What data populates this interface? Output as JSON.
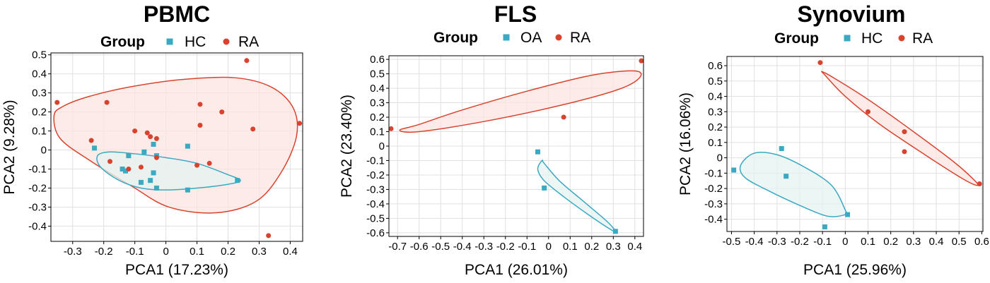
{
  "colors": {
    "group_a": "#3aa9c1",
    "group_b": "#d9432e",
    "grid": "#e0e0e0"
  },
  "chart_data": [
    {
      "type": "scatter",
      "title": "PBMC",
      "xlabel": "PCA1 (17.23%)",
      "ylabel": "PCA2 (9.28%)",
      "xlim": [
        -0.37,
        0.44
      ],
      "ylim": [
        -0.48,
        0.51
      ],
      "xticks": [
        -0.3,
        -0.2,
        -0.1,
        0,
        0.1,
        0.2,
        0.3,
        0.4
      ],
      "xtick_labels": [
        "-0.3",
        "-0.2",
        "-0.1",
        "0",
        "0.1",
        "0.2",
        "0.3",
        "0.4"
      ],
      "yticks": [
        0.5,
        0.4,
        0.3,
        0.2,
        0.1,
        0,
        -0.1,
        -0.2,
        -0.3,
        -0.4
      ],
      "ytick_labels": [
        "0.5",
        "0.4",
        "0.3",
        "0.2",
        "0.1",
        "0",
        "-0.1",
        "-0.2",
        "-0.3",
        "-0.4"
      ],
      "grid": true,
      "legend": {
        "title": "Group",
        "placement": "top"
      },
      "series": [
        {
          "name": "HC",
          "marker": "square",
          "color": "#3aa9c1",
          "x": [
            -0.23,
            -0.12,
            -0.07,
            -0.04,
            -0.03,
            -0.14,
            -0.13,
            -0.08,
            -0.05,
            -0.04,
            -0.03,
            0.07,
            0.07,
            0.23
          ],
          "y": [
            0.01,
            -0.03,
            -0.01,
            0.03,
            -0.03,
            -0.1,
            -0.11,
            -0.17,
            -0.16,
            -0.12,
            -0.2,
            -0.21,
            0.02,
            -0.16
          ]
        },
        {
          "name": "RA",
          "marker": "circle",
          "color": "#d9432e",
          "x": [
            -0.35,
            -0.24,
            -0.19,
            -0.18,
            -0.12,
            -0.1,
            -0.06,
            -0.05,
            -0.03,
            -0.03,
            -0.08,
            0.1,
            0.11,
            0.11,
            0.14,
            0.18,
            0.26,
            0.28,
            0.33,
            0.43
          ],
          "y": [
            0.25,
            0.05,
            0.25,
            -0.06,
            -0.1,
            0.1,
            0.09,
            0.07,
            0.06,
            -0.04,
            -0.09,
            -0.08,
            0.24,
            0.13,
            -0.07,
            0.2,
            0.47,
            0.11,
            -0.45,
            0.14
          ]
        }
      ],
      "ellipses": [
        {
          "series": "RA",
          "fill": "#fbe4e0",
          "stroke": "#d9432e",
          "points": [
            [
              -0.36,
              0.18
            ],
            [
              -0.33,
              0.23
            ],
            [
              -0.25,
              0.28
            ],
            [
              -0.12,
              0.33
            ],
            [
              0.05,
              0.37
            ],
            [
              0.22,
              0.38
            ],
            [
              0.34,
              0.33
            ],
            [
              0.41,
              0.22
            ],
            [
              0.42,
              0.07
            ],
            [
              0.37,
              -0.12
            ],
            [
              0.29,
              -0.27
            ],
            [
              0.16,
              -0.33
            ],
            [
              0.01,
              -0.3
            ],
            [
              -0.11,
              -0.19
            ],
            [
              -0.24,
              -0.06
            ],
            [
              -0.34,
              0.06
            ],
            [
              -0.36,
              0.18
            ]
          ]
        },
        {
          "series": "HC",
          "fill": "#e6f3f2",
          "stroke": "#3aa9c1",
          "points": [
            [
              -0.22,
              -0.03
            ],
            [
              -0.18,
              -0.01
            ],
            [
              -0.1,
              -0.02
            ],
            [
              0.0,
              -0.04
            ],
            [
              0.1,
              -0.07
            ],
            [
              0.2,
              -0.13
            ],
            [
              0.24,
              -0.16
            ],
            [
              0.2,
              -0.18
            ],
            [
              0.1,
              -0.2
            ],
            [
              0.0,
              -0.21
            ],
            [
              -0.08,
              -0.2
            ],
            [
              -0.15,
              -0.16
            ],
            [
              -0.21,
              -0.09
            ],
            [
              -0.22,
              -0.03
            ]
          ]
        }
      ]
    },
    {
      "type": "scatter",
      "title": "FLS",
      "xlabel": "PCA1 (26.01%)",
      "ylabel": "PCA2 (23.40%)",
      "xlim": [
        -0.74,
        0.44
      ],
      "ylim": [
        -0.625,
        0.625
      ],
      "xticks": [
        -0.7,
        -0.6,
        -0.5,
        -0.4,
        -0.3,
        -0.2,
        -0.1,
        0,
        0.1,
        0.2,
        0.3,
        0.4
      ],
      "xtick_labels": [
        "-0.7",
        "-0.6",
        "-0.5",
        "-0.4",
        "-0.3",
        "-0.2",
        "-0.1",
        "0",
        "0.1",
        "0.2",
        "0.3",
        "0.4"
      ],
      "yticks": [
        0.6,
        0.5,
        0.4,
        0.3,
        0.2,
        0.1,
        0,
        -0.1,
        -0.2,
        -0.3,
        -0.4,
        -0.5,
        -0.6
      ],
      "ytick_labels": [
        "0.6",
        "0.5",
        "0.4",
        "0.3",
        "0.2",
        "0.1",
        "0",
        "-0.1",
        "-0.2",
        "-0.3",
        "-0.4",
        "-0.5",
        "-0.6"
      ],
      "grid": true,
      "legend": {
        "title": "Group",
        "placement": "top"
      },
      "series": [
        {
          "name": "OA",
          "marker": "square",
          "color": "#3aa9c1",
          "x": [
            -0.05,
            -0.02,
            0.31
          ],
          "y": [
            -0.04,
            -0.29,
            -0.59
          ]
        },
        {
          "name": "RA",
          "marker": "circle",
          "color": "#d9432e",
          "x": [
            -0.73,
            0.07,
            0.43
          ],
          "y": [
            0.12,
            0.2,
            0.59
          ]
        }
      ],
      "ellipses": [
        {
          "series": "RA",
          "fill": "#fbe4e0",
          "stroke": "#d9432e",
          "points": [
            [
              -0.69,
              0.11
            ],
            [
              -0.6,
              0.15
            ],
            [
              -0.4,
              0.25
            ],
            [
              -0.1,
              0.38
            ],
            [
              0.2,
              0.49
            ],
            [
              0.4,
              0.52
            ],
            [
              0.42,
              0.47
            ],
            [
              0.32,
              0.39
            ],
            [
              0.05,
              0.28
            ],
            [
              -0.3,
              0.17
            ],
            [
              -0.6,
              0.1
            ],
            [
              -0.69,
              0.11
            ]
          ]
        },
        {
          "series": "OA",
          "fill": "#e6f3f2",
          "stroke": "#3aa9c1",
          "points": [
            [
              -0.03,
              -0.1
            ],
            [
              -0.02,
              -0.12
            ],
            [
              0.05,
              -0.24
            ],
            [
              0.16,
              -0.38
            ],
            [
              0.27,
              -0.52
            ],
            [
              0.31,
              -0.59
            ],
            [
              0.28,
              -0.57
            ],
            [
              0.18,
              -0.47
            ],
            [
              0.07,
              -0.35
            ],
            [
              -0.02,
              -0.24
            ],
            [
              -0.05,
              -0.16
            ],
            [
              -0.03,
              -0.1
            ]
          ]
        }
      ]
    },
    {
      "type": "scatter",
      "title": "Synovium",
      "xlabel": "PCA1 (25.96%)",
      "ylabel": "PCA2 (16.06%)",
      "xlim": [
        -0.52,
        0.605
      ],
      "ylim": [
        -0.48,
        0.66
      ],
      "xticks": [
        -0.5,
        -0.4,
        -0.3,
        -0.2,
        -0.1,
        0,
        0.1,
        0.2,
        0.3,
        0.4,
        0.5,
        0.6
      ],
      "xtick_labels": [
        "-0.5",
        "-0.4",
        "-0.3",
        "-0.2",
        "-0.1",
        "0",
        "0.1",
        "0.2",
        "0.3",
        "0.4",
        "0.5",
        "0.6"
      ],
      "yticks": [
        0.6,
        0.5,
        0.4,
        0.3,
        0.2,
        0.1,
        0,
        -0.1,
        -0.2,
        -0.3,
        -0.4
      ],
      "ytick_labels": [
        "0.6",
        "0.5",
        "0.4",
        "0.3",
        "0.2",
        "0.1",
        "0",
        "-0.1",
        "-0.2",
        "-0.3",
        "-0.4"
      ],
      "grid": true,
      "legend": {
        "title": "Group",
        "placement": "top"
      },
      "series": [
        {
          "name": "HC",
          "marker": "square",
          "color": "#3aa9c1",
          "x": [
            -0.49,
            -0.28,
            -0.26,
            -0.09,
            0.01
          ],
          "y": [
            -0.08,
            0.06,
            -0.12,
            -0.45,
            -0.37
          ]
        },
        {
          "name": "RA",
          "marker": "circle",
          "color": "#d9432e",
          "x": [
            -0.11,
            0.1,
            0.26,
            0.26,
            0.59
          ],
          "y": [
            0.62,
            0.3,
            0.17,
            0.04,
            -0.17
          ]
        }
      ],
      "ellipses": [
        {
          "series": "RA",
          "fill": "#fbe4e0",
          "stroke": "#d9432e",
          "points": [
            [
              -0.09,
              0.54
            ],
            [
              -0.1,
              0.56
            ],
            [
              -0.05,
              0.52
            ],
            [
              0.1,
              0.38
            ],
            [
              0.3,
              0.17
            ],
            [
              0.48,
              -0.03
            ],
            [
              0.57,
              -0.15
            ],
            [
              0.58,
              -0.18
            ],
            [
              0.52,
              -0.14
            ],
            [
              0.35,
              0.02
            ],
            [
              0.15,
              0.22
            ],
            [
              0.0,
              0.4
            ],
            [
              -0.09,
              0.54
            ]
          ]
        },
        {
          "series": "HC",
          "fill": "#e6f3f2",
          "stroke": "#3aa9c1",
          "points": [
            [
              -0.46,
              -0.05
            ],
            [
              -0.4,
              0.03
            ],
            [
              -0.3,
              0.02
            ],
            [
              -0.18,
              -0.06
            ],
            [
              -0.06,
              -0.18
            ],
            [
              0.0,
              -0.34
            ],
            [
              0.0,
              -0.37
            ],
            [
              -0.08,
              -0.38
            ],
            [
              -0.2,
              -0.31
            ],
            [
              -0.33,
              -0.22
            ],
            [
              -0.44,
              -0.13
            ],
            [
              -0.46,
              -0.05
            ]
          ]
        }
      ]
    }
  ]
}
